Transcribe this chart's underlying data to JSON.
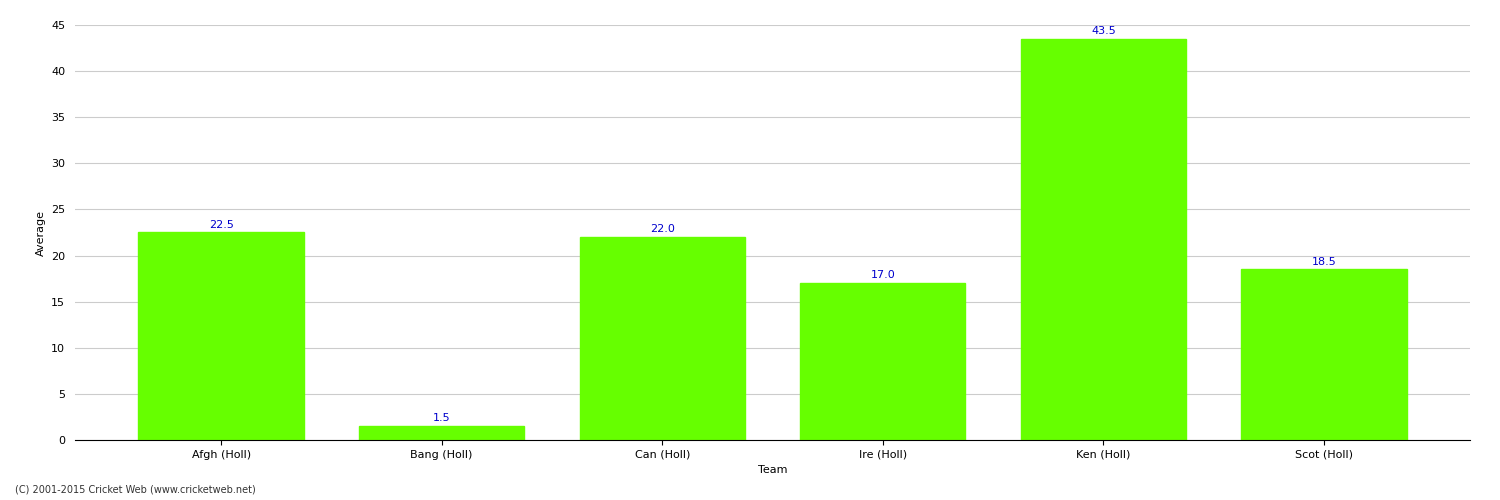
{
  "categories": [
    "Afgh (Holl)",
    "Bang (Holl)",
    "Can (Holl)",
    "Ire (Holl)",
    "Ken (Holl)",
    "Scot (Holl)"
  ],
  "values": [
    22.5,
    1.5,
    22.0,
    17.0,
    43.5,
    18.5
  ],
  "bar_color": "#66ff00",
  "bar_edge_color": "#66ff00",
  "label_color": "#0000cc",
  "xlabel": "Team",
  "ylabel": "Average",
  "ylim": [
    0,
    45
  ],
  "yticks": [
    0,
    5,
    10,
    15,
    20,
    25,
    30,
    35,
    40,
    45
  ],
  "grid_color": "#cccccc",
  "background_color": "#ffffff",
  "footer": "(C) 2001-2015 Cricket Web (www.cricketweb.net)",
  "label_fontsize": 8,
  "axis_fontsize": 8,
  "bar_width": 0.75
}
